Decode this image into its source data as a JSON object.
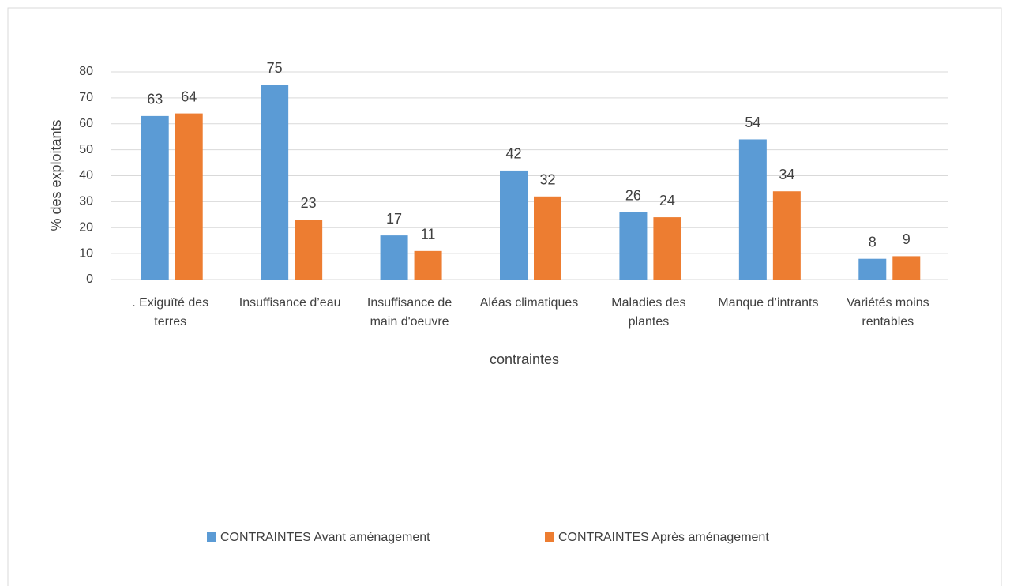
{
  "chart_data": {
    "type": "bar",
    "categories": [
      ". Exiguïté des terres",
      "Insuffisance d’eau",
      "Insuffisance de main d'oeuvre",
      "Aléas climatiques",
      "Maladies des plantes",
      "Manque d’intrants",
      "Variétés moins rentables"
    ],
    "series": [
      {
        "name": "CONTRAINTES Avant aménagement",
        "color": "#5b9bd5",
        "values": [
          63,
          75,
          17,
          42,
          26,
          54,
          8
        ]
      },
      {
        "name": "CONTRAINTES Après aménagement",
        "color": "#ed7d31",
        "values": [
          64,
          23,
          11,
          32,
          24,
          34,
          9
        ]
      }
    ],
    "x_label": "contraintes",
    "y_label": "% des exploitants",
    "ylim": [
      0,
      80
    ],
    "yticks": [
      0,
      10,
      20,
      30,
      40,
      50,
      60,
      70,
      80
    ],
    "grid": true,
    "legend": "bottom"
  }
}
